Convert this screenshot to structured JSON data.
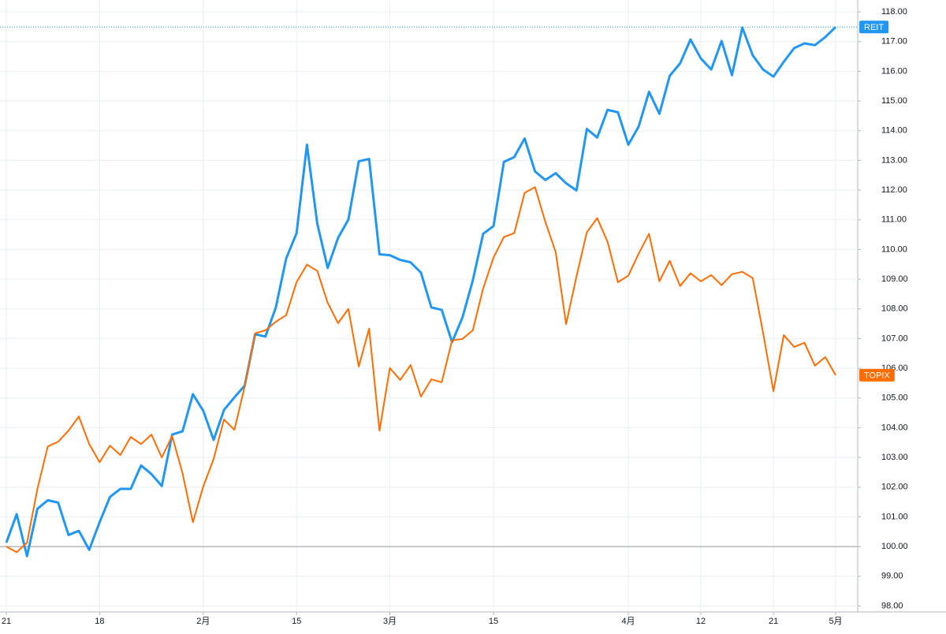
{
  "chart_data": {
    "type": "line",
    "categories": [
      "21",
      null,
      null,
      null,
      null,
      null,
      null,
      null,
      null,
      "18",
      null,
      null,
      null,
      null,
      null,
      null,
      null,
      null,
      null,
      "2月",
      null,
      null,
      null,
      null,
      null,
      null,
      null,
      null,
      "15",
      null,
      null,
      null,
      null,
      null,
      null,
      null,
      null,
      "3月",
      null,
      null,
      null,
      null,
      null,
      null,
      null,
      null,
      null,
      "15",
      null,
      null,
      null,
      null,
      null,
      null,
      null,
      null,
      null,
      null,
      null,
      null,
      "4月",
      null,
      null,
      null,
      null,
      null,
      null,
      "12",
      null,
      null,
      null,
      null,
      null,
      null,
      "21",
      null,
      null,
      null,
      null,
      null,
      "5月"
    ],
    "series": [
      {
        "name": "REIT",
        "color": "#2196f3",
        "values": [
          100.13,
          101.09,
          99.68,
          101.27,
          101.56,
          101.48,
          100.39,
          100.53,
          99.89,
          100.82,
          101.67,
          101.94,
          101.94,
          102.73,
          102.44,
          102.04,
          103.77,
          103.88,
          105.13,
          104.57,
          103.59,
          104.6,
          105.02,
          105.42,
          107.15,
          107.07,
          108.05,
          109.7,
          110.55,
          113.53,
          110.87,
          109.38,
          110.39,
          111.01,
          112.97,
          113.05,
          109.84,
          109.81,
          109.65,
          109.57,
          109.22,
          108.05,
          107.97,
          106.88,
          107.71,
          108.96,
          110.53,
          110.79,
          112.95,
          113.11,
          113.74,
          112.63,
          112.34,
          112.57,
          112.23,
          111.99,
          114.06,
          113.77,
          114.7,
          114.62,
          113.53,
          114.14,
          115.31,
          114.57,
          115.85,
          116.27,
          117.07,
          116.43,
          116.06,
          117.02,
          115.87,
          117.47,
          116.54,
          116.06,
          115.82,
          116.32,
          116.78,
          116.94,
          116.88,
          117.15,
          117.49
        ]
      },
      {
        "name": "TOPIX",
        "color": "#ff6d00",
        "values": [
          100.0,
          99.81,
          100.13,
          101.94,
          103.37,
          103.53,
          103.9,
          104.38,
          103.45,
          102.84,
          103.4,
          103.08,
          103.69,
          103.45,
          103.77,
          103.0,
          103.72,
          102.47,
          100.82,
          102.02,
          102.95,
          104.28,
          103.93,
          105.39,
          107.18,
          107.28,
          107.57,
          107.79,
          108.9,
          109.49,
          109.28,
          108.21,
          107.52,
          108.0,
          106.06,
          107.34,
          103.9,
          106.01,
          105.61,
          106.11,
          105.05,
          105.63,
          105.53,
          106.94,
          106.99,
          107.28,
          108.69,
          109.73,
          110.42,
          110.55,
          111.91,
          112.1,
          110.93,
          109.91,
          107.49,
          109.09,
          110.58,
          111.06,
          110.26,
          108.9,
          109.12,
          109.86,
          110.53,
          108.93,
          109.62,
          108.77,
          109.2,
          108.93,
          109.14,
          108.8,
          109.17,
          109.25,
          109.04,
          107.2,
          105.23,
          107.12,
          106.72,
          106.86,
          106.09,
          106.38,
          105.77
        ]
      }
    ],
    "ylim": [
      97.8,
      118.4
    ],
    "yticks": [
      {
        "value": 98,
        "label": "98.00"
      },
      {
        "value": 99,
        "label": "99.00"
      },
      {
        "value": 100,
        "label": "100.00"
      },
      {
        "value": 101,
        "label": "101.00"
      },
      {
        "value": 102,
        "label": "102.00"
      },
      {
        "value": 103,
        "label": "103.00"
      },
      {
        "value": 104,
        "label": "104.00"
      },
      {
        "value": 105,
        "label": "105.00"
      },
      {
        "value": 106,
        "label": "106.00"
      },
      {
        "value": 107,
        "label": "107.00"
      },
      {
        "value": 108,
        "label": "108.00"
      },
      {
        "value": 109,
        "label": "109.00"
      },
      {
        "value": 110,
        "label": "110.00"
      },
      {
        "value": 111,
        "label": "111.00"
      },
      {
        "value": 112,
        "label": "112.00"
      },
      {
        "value": 113,
        "label": "113.00"
      },
      {
        "value": 114,
        "label": "114.00"
      },
      {
        "value": 115,
        "label": "115.00"
      },
      {
        "value": 116,
        "label": "116.00"
      },
      {
        "value": 117,
        "label": "117.00"
      },
      {
        "value": 118,
        "label": "118.00"
      }
    ],
    "baseline": 100,
    "grid": true
  }
}
